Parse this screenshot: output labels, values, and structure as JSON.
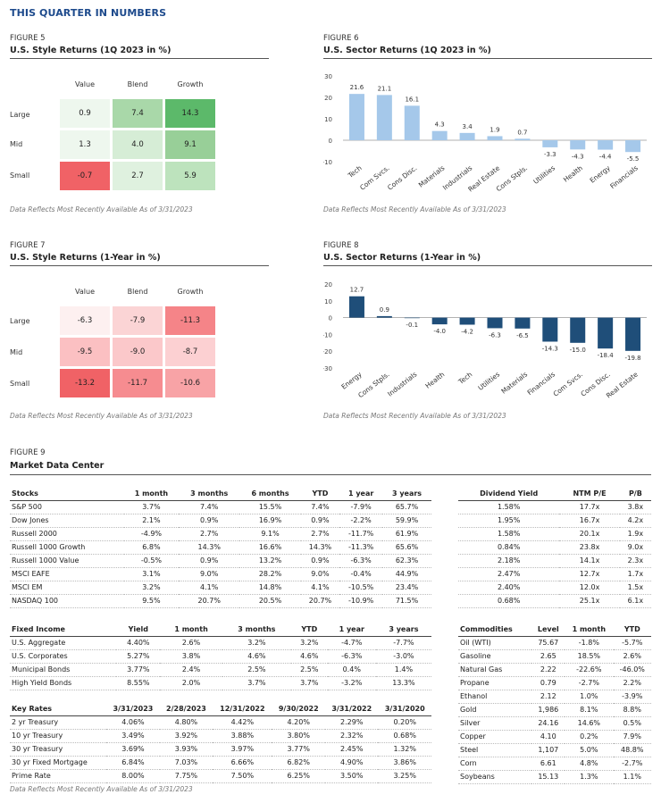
{
  "header": "THIS QUARTER IN NUMBERS",
  "note": "Data Reflects Most Recently Available As of 3/31/2023",
  "fig5": {
    "label": "FIGURE 5",
    "title": "U.S. Style Returns (1Q 2023 in %)",
    "cols": [
      "Value",
      "Blend",
      "Growth"
    ],
    "rows": [
      "Large",
      "Mid",
      "Small"
    ],
    "values": [
      [
        "0.9",
        "7.4",
        "14.3"
      ],
      [
        "1.3",
        "4.0",
        "9.1"
      ],
      [
        "-0.7",
        "2.7",
        "5.9"
      ]
    ],
    "colors": [
      [
        "#eef7ee",
        "#a9d8a9",
        "#5cb96a"
      ],
      [
        "#eef7ee",
        "#d6edd6",
        "#98cf98"
      ],
      [
        "#f06266",
        "#dff1df",
        "#bde3bd"
      ]
    ]
  },
  "fig7": {
    "label": "FIGURE 7",
    "title": "U.S. Style Returns (1-Year in %)",
    "cols": [
      "Value",
      "Blend",
      "Growth"
    ],
    "rows": [
      "Large",
      "Mid",
      "Small"
    ],
    "values": [
      [
        "-6.3",
        "-7.9",
        "-11.3"
      ],
      [
        "-9.5",
        "-9.0",
        "-8.7"
      ],
      [
        "-13.2",
        "-11.7",
        "-10.6"
      ]
    ],
    "colors": [
      [
        "#fdf0f0",
        "#fbd4d5",
        "#f58488"
      ],
      [
        "#fbc0c2",
        "#fbc8ca",
        "#fcd0d2"
      ],
      [
        "#f06266",
        "#f68c90",
        "#f8a3a6"
      ]
    ]
  },
  "fig6": {
    "label": "FIGURE 6",
    "title": "U.S. Sector Returns (1Q 2023 in %)",
    "chart_data": {
      "type": "bar",
      "categories": [
        "Tech",
        "Com Svcs.",
        "Cons Disc.",
        "Materials",
        "Industrials",
        "Real Estate",
        "Cons Stpls.",
        "Utilities",
        "Health",
        "Energy",
        "Financials"
      ],
      "values": [
        21.6,
        21.1,
        16.1,
        4.3,
        3.4,
        1.9,
        0.7,
        -3.3,
        -4.3,
        -4.4,
        -5.5
      ],
      "labels": [
        "21.6",
        "21.1",
        "16.1",
        "4.3",
        "3.4",
        "1.9",
        "0.7",
        "-3.3",
        "-4.3",
        "-4.4",
        "-5.5"
      ],
      "ylim": [
        -10,
        30
      ],
      "ticks": [
        "30",
        "20",
        "10",
        "0",
        "-10"
      ],
      "tickvals": [
        30,
        20,
        10,
        0,
        -10
      ],
      "color": "#a5c8ea"
    }
  },
  "fig8": {
    "label": "FIGURE 8",
    "title": "U.S. Sector Returns (1-Year in %)",
    "chart_data": {
      "type": "bar",
      "categories": [
        "Energy",
        "Cons Stpls.",
        "Industrials",
        "Health",
        "Tech",
        "Utilities",
        "Materials",
        "Financials",
        "Com Svcs.",
        "Cons Disc.",
        "Real Estate"
      ],
      "values": [
        12.7,
        0.9,
        -0.1,
        -4.0,
        -4.2,
        -6.3,
        -6.5,
        -14.3,
        -15.0,
        -18.4,
        -19.8
      ],
      "labels": [
        "12.7",
        "0.9",
        "-0.1",
        "-4.0",
        "-4.2",
        "-6.3",
        "-6.5",
        "-14.3",
        "-15.0",
        "-18.4",
        "-19.8"
      ],
      "ylim": [
        -30,
        20
      ],
      "ticks": [
        "20",
        "10",
        "0",
        "-10",
        "-20",
        "-30"
      ],
      "tickvals": [
        20,
        10,
        0,
        -10,
        -20,
        -30
      ],
      "color": "#1f4e79"
    }
  },
  "fig9": {
    "label": "FIGURE 9",
    "title": "Market Data Center",
    "stocks": {
      "head": [
        "Stocks",
        "1 month",
        "3 months",
        "6 months",
        "YTD",
        "1 year",
        "3 years"
      ],
      "rows": [
        [
          "S&P 500",
          "3.7%",
          "7.4%",
          "15.5%",
          "7.4%",
          "-7.9%",
          "65.7%"
        ],
        [
          "Dow Jones",
          "2.1%",
          "0.9%",
          "16.9%",
          "0.9%",
          "-2.2%",
          "59.9%"
        ],
        [
          "Russell 2000",
          "-4.9%",
          "2.7%",
          "9.1%",
          "2.7%",
          "-11.7%",
          "61.9%"
        ],
        [
          "Russell 1000 Growth",
          "6.8%",
          "14.3%",
          "16.6%",
          "14.3%",
          "-11.3%",
          "65.6%"
        ],
        [
          "Russell 1000 Value",
          "-0.5%",
          "0.9%",
          "13.2%",
          "0.9%",
          "-6.3%",
          "62.3%"
        ],
        [
          "MSCI EAFE",
          "3.1%",
          "9.0%",
          "28.2%",
          "9.0%",
          "-0.4%",
          "44.9%"
        ],
        [
          "MSCI EM",
          "3.2%",
          "4.1%",
          "14.8%",
          "4.1%",
          "-10.5%",
          "23.4%"
        ],
        [
          "NASDAQ 100",
          "9.5%",
          "20.7%",
          "20.5%",
          "20.7%",
          "-10.9%",
          "71.5%"
        ]
      ]
    },
    "div": {
      "head": [
        "Dividend Yield",
        "NTM P/E",
        "P/B"
      ],
      "rows": [
        [
          "1.58%",
          "17.7x",
          "3.8x"
        ],
        [
          "1.95%",
          "16.7x",
          "4.2x"
        ],
        [
          "1.58%",
          "20.1x",
          "1.9x"
        ],
        [
          "0.84%",
          "23.8x",
          "9.0x"
        ],
        [
          "2.18%",
          "14.1x",
          "2.3x"
        ],
        [
          "2.47%",
          "12.7x",
          "1.7x"
        ],
        [
          "2.40%",
          "12.0x",
          "1.5x"
        ],
        [
          "0.68%",
          "25.1x",
          "6.1x"
        ]
      ]
    },
    "fixed": {
      "head": [
        "Fixed Income",
        "Yield",
        "1 month",
        "3 months",
        "YTD",
        "1 year",
        "3 years"
      ],
      "rows": [
        [
          "U.S. Aggregate",
          "4.40%",
          "2.6%",
          "3.2%",
          "3.2%",
          "-4.7%",
          "-7.7%"
        ],
        [
          "U.S. Corporates",
          "5.27%",
          "3.8%",
          "4.6%",
          "4.6%",
          "-6.3%",
          "-3.0%"
        ],
        [
          "Municipal Bonds",
          "3.77%",
          "2.4%",
          "2.5%",
          "2.5%",
          "0.4%",
          "1.4%"
        ],
        [
          "High Yield Bonds",
          "8.55%",
          "2.0%",
          "3.7%",
          "3.7%",
          "-3.2%",
          "13.3%"
        ]
      ]
    },
    "rates": {
      "head": [
        "Key Rates",
        "3/31/2023",
        "2/28/2023",
        "12/31/2022",
        "9/30/2022",
        "3/31/2022",
        "3/31/2020"
      ],
      "rows": [
        [
          "2 yr Treasury",
          "4.06%",
          "4.80%",
          "4.42%",
          "4.20%",
          "2.29%",
          "0.20%"
        ],
        [
          "10 yr Treasury",
          "3.49%",
          "3.92%",
          "3.88%",
          "3.80%",
          "2.32%",
          "0.68%"
        ],
        [
          "30 yr Treasury",
          "3.69%",
          "3.93%",
          "3.97%",
          "3.77%",
          "2.45%",
          "1.32%"
        ],
        [
          "30 yr Fixed Mortgage",
          "6.84%",
          "7.03%",
          "6.66%",
          "6.82%",
          "4.90%",
          "3.86%"
        ],
        [
          "Prime Rate",
          "8.00%",
          "7.75%",
          "7.50%",
          "6.25%",
          "3.50%",
          "3.25%"
        ]
      ]
    },
    "comm": {
      "head": [
        "Commodities",
        "Level",
        "1 month",
        "YTD"
      ],
      "rows": [
        [
          "Oil (WTI)",
          "75.67",
          "-1.8%",
          "-5.7%"
        ],
        [
          "Gasoline",
          "2.65",
          "18.5%",
          "2.6%"
        ],
        [
          "Natural Gas",
          "2.22",
          "-22.6%",
          "-46.0%"
        ],
        [
          "Propane",
          "0.79",
          "-2.7%",
          "2.2%"
        ],
        [
          "Ethanol",
          "2.12",
          "1.0%",
          "-3.9%"
        ],
        [
          "Gold",
          "1,986",
          "8.1%",
          "8.8%"
        ],
        [
          "Silver",
          "24.16",
          "14.6%",
          "0.5%"
        ],
        [
          "Copper",
          "4.10",
          "0.2%",
          "7.9%"
        ],
        [
          "Steel",
          "1,107",
          "5.0%",
          "48.8%"
        ],
        [
          "Corn",
          "6.61",
          "4.8%",
          "-2.7%"
        ],
        [
          "Soybeans",
          "15.13",
          "1.3%",
          "1.1%"
        ]
      ]
    }
  }
}
